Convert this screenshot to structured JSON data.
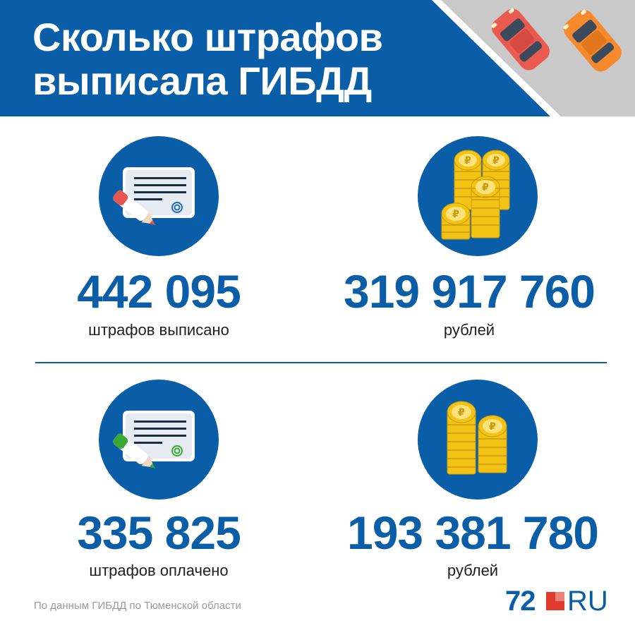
{
  "header": {
    "title_line1": "Сколько штрафов",
    "title_line2": "выписала ГИБДД",
    "background_color": "#0a5ea7",
    "corner_color": "#c9c9c9",
    "car_icons": [
      "red-car-icon",
      "orange-car-icon"
    ]
  },
  "stats": [
    {
      "icon": "document-red-pen-icon",
      "value": "442 095",
      "label": "штрафов выписано"
    },
    {
      "icon": "gold-coin-stacks-icon",
      "value": "319 917 760",
      "label": "рублей"
    },
    {
      "icon": "document-green-pen-icon",
      "value": "335 825",
      "label": "штрафов оплачено"
    },
    {
      "icon": "gold-coin-stacks-small-icon",
      "value": "193 381 780",
      "label": "рублей"
    }
  ],
  "footer": {
    "source": "По данным ГИБДД по Тюменской области",
    "logo_number": "72",
    "logo_suffix": "RU"
  },
  "colors": {
    "accent": "#0a5ea7",
    "coin": "#f2c315",
    "pen_red": "#e85550",
    "pen_green": "#3aa935"
  }
}
